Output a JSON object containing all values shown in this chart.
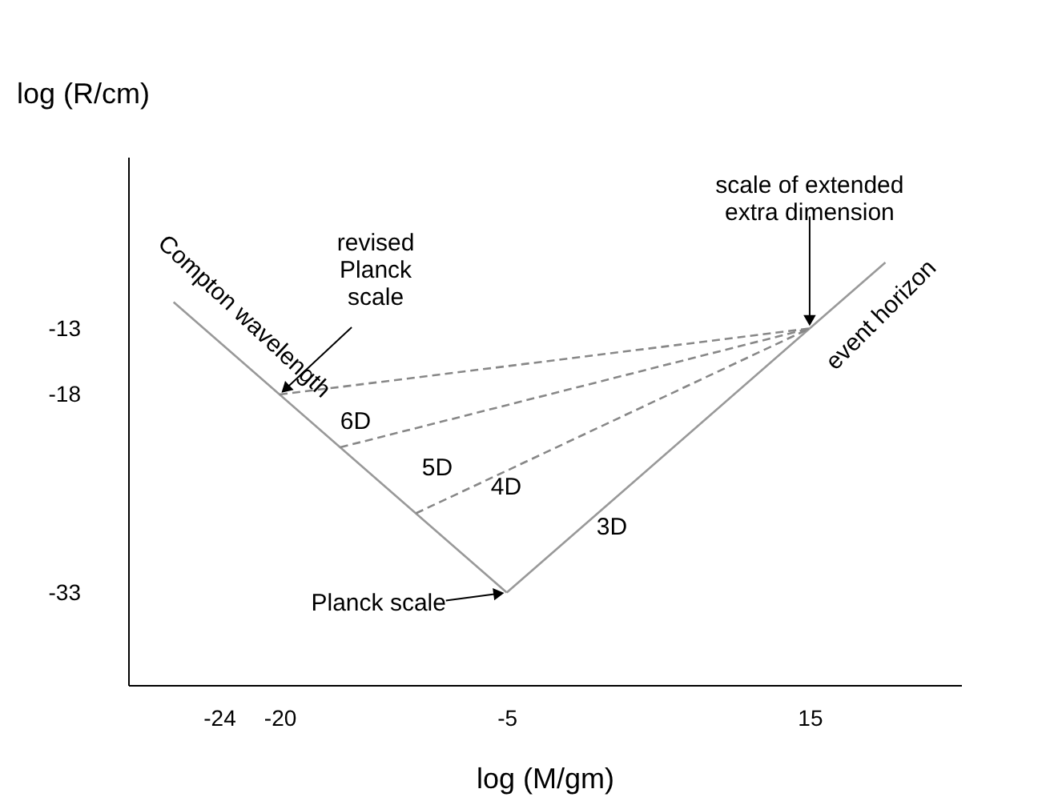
{
  "chart_data": {
    "type": "line",
    "xlabel": "log (M/gm)",
    "ylabel": "log (R/cm)",
    "xlim": [
      -30,
      25
    ],
    "ylim": [
      -40,
      0
    ],
    "xticks": [
      -24,
      -20,
      -5,
      15
    ],
    "yticks": [
      -13,
      -18,
      -33
    ],
    "grid": false,
    "marker": "none",
    "series": [
      {
        "color": "#999999",
        "x": [
          -27,
          -5
        ],
        "values": [
          -11,
          -33
        ]
      },
      {
        "color": "#999999",
        "x": [
          -5,
          20
        ],
        "values": [
          -33,
          -8
        ]
      },
      {
        "color": "#888888",
        "line_style": "dashed",
        "x": [
          -20,
          15
        ],
        "values": [
          -18,
          -13
        ]
      },
      {
        "color": "#888888",
        "line_style": "dashed",
        "x": [
          -16,
          15
        ],
        "values": [
          -22,
          -13
        ]
      },
      {
        "color": "#888888",
        "line_style": "dashed",
        "x": [
          -11,
          15
        ],
        "values": [
          -27,
          -13
        ]
      }
    ],
    "annotations": [
      {
        "text": "Compton wavelength",
        "x": -24,
        "y": -14
      },
      {
        "text": "event horizon",
        "x": 18,
        "y": -10
      },
      "6D",
      "5D",
      "4D",
      "3D",
      {
        "text": "revised\nPlanck\nscale",
        "x": -20,
        "y": -18
      },
      {
        "text": "scale of extended\nextra dimension",
        "x": 15,
        "y": -13
      },
      {
        "text": "Planck scale",
        "x": -5,
        "y": -33
      }
    ]
  }
}
